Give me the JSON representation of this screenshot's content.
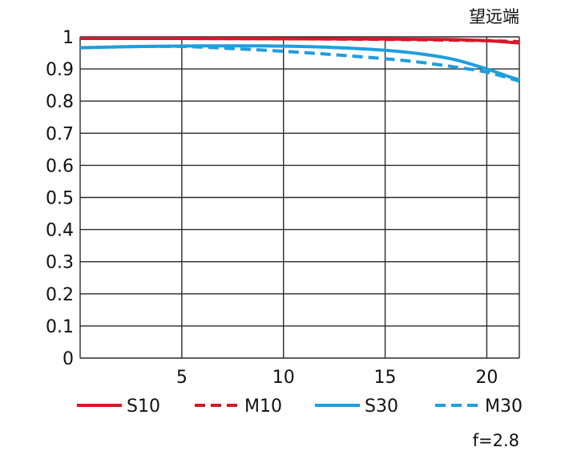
{
  "chart_data": {
    "type": "line",
    "corner_label": "望远端",
    "aperture_label": "f=2.8",
    "xlim": [
      0,
      21.6
    ],
    "ylim": [
      0,
      1
    ],
    "x_ticks": [
      5,
      10,
      15,
      20
    ],
    "y_ticks": [
      0,
      0.1,
      0.2,
      0.3,
      0.4,
      0.5,
      0.6,
      0.7,
      0.8,
      0.9,
      1
    ],
    "y_tick_labels": [
      "0",
      "0.1",
      "0.2",
      "0.3",
      "0.4",
      "0.5",
      "0.6",
      "0.7",
      "0.8",
      "0.9",
      "1"
    ],
    "grid": true,
    "legend_position": "bottom",
    "series": [
      {
        "name": "S10",
        "color": "#d7182a",
        "style": "solid",
        "points": [
          [
            0,
            0.995
          ],
          [
            5,
            0.995
          ],
          [
            10,
            0.994
          ],
          [
            15,
            0.993
          ],
          [
            18,
            0.992
          ],
          [
            20,
            0.988
          ],
          [
            21.6,
            0.981
          ]
        ]
      },
      {
        "name": "M10",
        "color": "#d7182a",
        "style": "dashed",
        "points": [
          [
            0,
            0.995
          ],
          [
            5,
            0.995
          ],
          [
            10,
            0.994
          ],
          [
            15,
            0.992
          ],
          [
            18,
            0.99
          ],
          [
            20,
            0.988
          ],
          [
            21.6,
            0.985
          ]
        ]
      },
      {
        "name": "S30",
        "color": "#1e9ede",
        "style": "solid",
        "points": [
          [
            0,
            0.966
          ],
          [
            3,
            0.97
          ],
          [
            6,
            0.972
          ],
          [
            9,
            0.972
          ],
          [
            12,
            0.968
          ],
          [
            15,
            0.958
          ],
          [
            17,
            0.945
          ],
          [
            18.5,
            0.928
          ],
          [
            20,
            0.9
          ],
          [
            21,
            0.878
          ],
          [
            21.6,
            0.866
          ]
        ]
      },
      {
        "name": "M30",
        "color": "#1e9ede",
        "style": "dashed",
        "points": [
          [
            0,
            0.966
          ],
          [
            3,
            0.97
          ],
          [
            5,
            0.97
          ],
          [
            7,
            0.965
          ],
          [
            10,
            0.955
          ],
          [
            13,
            0.942
          ],
          [
            16,
            0.926
          ],
          [
            18,
            0.91
          ],
          [
            20,
            0.89
          ],
          [
            21.6,
            0.862
          ]
        ]
      }
    ]
  }
}
